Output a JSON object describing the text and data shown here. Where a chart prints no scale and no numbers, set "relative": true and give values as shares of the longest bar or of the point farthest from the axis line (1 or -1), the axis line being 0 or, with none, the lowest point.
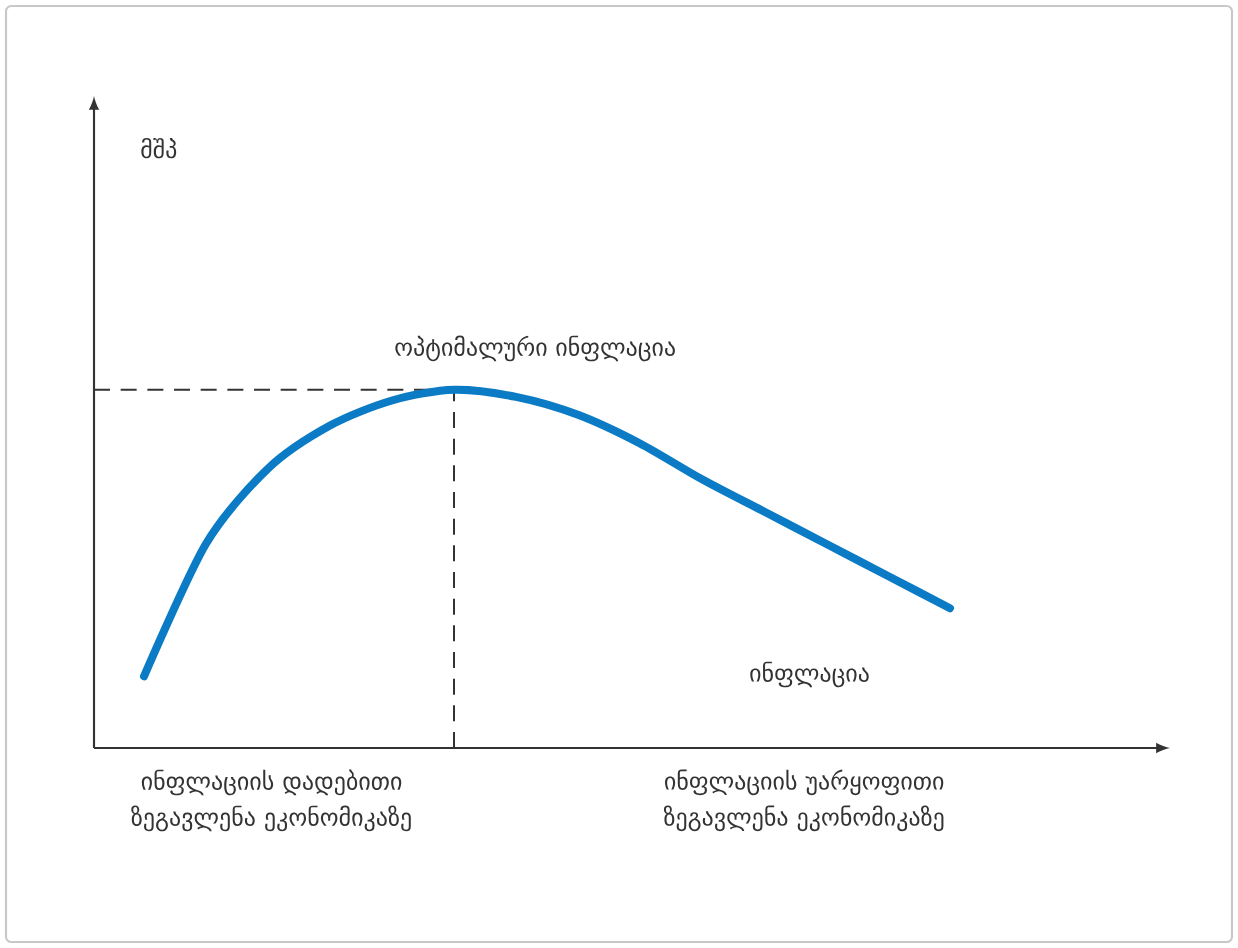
{
  "chart_data": {
    "type": "line",
    "relative": true,
    "xlabel": "ინფლაცია",
    "categories": [
      null,
      null,
      null,
      null,
      null,
      null,
      null,
      null,
      null,
      null,
      null,
      null,
      null,
      null
    ],
    "series": [
      {
        "color": "#0a7bc4",
        "values": [
          0.2,
          0.57,
          0.78,
          0.9,
          0.97,
          1.0,
          0.98,
          0.93,
          0.85,
          0.75,
          0.66,
          0.57,
          0.48,
          0.39
        ]
      }
    ],
    "ref_lines": [
      {
        "axis": "y",
        "value": 1,
        "color": "#333333",
        "line_style": "dashed"
      }
    ],
    "annotations": [
      "მშპ",
      "ოპტიმალური ინფლაცია",
      "ინფლაციის დადებითი ზეგავლენა ეკონომიკაზე",
      "ინფლაციის უარყოფითი ზეგავლენა ეკონომიკაზე"
    ],
    "marker": "none",
    "line_style": "solid"
  }
}
